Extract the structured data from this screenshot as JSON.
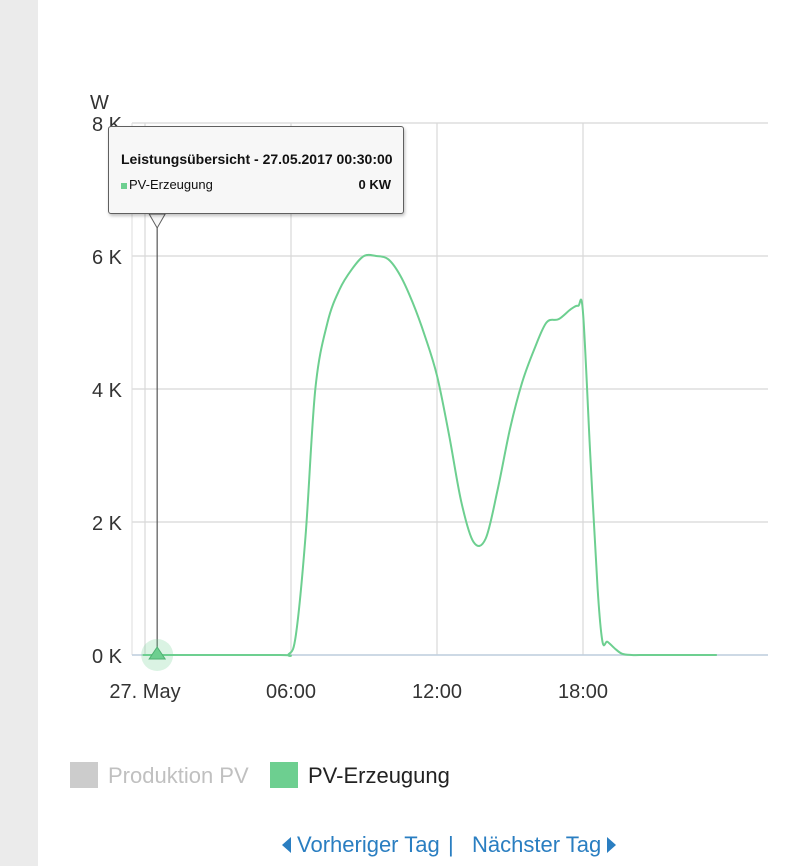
{
  "chart_data": {
    "type": "area",
    "title": "",
    "ylabel": "W",
    "xlabel": "",
    "ylim": [
      0,
      8000
    ],
    "yticks": [
      0,
      2000,
      4000,
      6000,
      8000
    ],
    "ytick_labels": [
      "0 K",
      "2 K",
      "4 K",
      "6 K",
      "8 K"
    ],
    "xlim": [
      0,
      24
    ],
    "xticks": [
      0,
      6,
      12,
      18
    ],
    "xtick_labels": [
      "27. May",
      "06:00",
      "12:00",
      "18:00"
    ],
    "grid": true,
    "legend_position": "bottom-left",
    "series": [
      {
        "name": "Produktion PV",
        "visible": false,
        "color": "#cccccc",
        "x": [
          0,
          23.5
        ],
        "values": [
          0,
          0
        ]
      },
      {
        "name": "PV-Erzeugung",
        "visible": true,
        "color": "#6dcf90",
        "x": [
          0,
          0.5,
          5.5,
          5.9,
          6.2,
          6.6,
          7.0,
          7.5,
          8.0,
          8.5,
          9.0,
          9.5,
          10.0,
          10.5,
          11.0,
          11.5,
          12.0,
          12.5,
          13.0,
          13.5,
          14.0,
          14.5,
          15.0,
          15.5,
          16.0,
          16.5,
          17.0,
          17.5,
          17.8,
          18.0,
          18.3,
          18.6,
          18.8,
          19.0,
          19.3,
          19.6,
          20.0,
          20.5,
          21.0,
          22.0,
          23.5
        ],
        "values": [
          0,
          0,
          0,
          10,
          300,
          1800,
          4000,
          5000,
          5500,
          5800,
          6000,
          6000,
          5950,
          5700,
          5300,
          4800,
          4200,
          3300,
          2300,
          1700,
          1750,
          2500,
          3400,
          4100,
          4600,
          5000,
          5050,
          5200,
          5250,
          5150,
          3000,
          1000,
          200,
          200,
          100,
          20,
          0,
          0,
          0,
          0,
          0
        ]
      }
    ]
  },
  "tooltip": {
    "title": "Leistungsübersicht - 27.05.2017 00:30:00",
    "series_name": "PV-Erzeugung",
    "value": "0 KW",
    "marker_x": 0.5,
    "marker_y": 0
  },
  "legend": {
    "items": [
      {
        "label": "Produktion PV",
        "color": "#cccccc",
        "active": false
      },
      {
        "label": "PV-Erzeugung",
        "color": "#6dcf90",
        "active": true
      }
    ]
  },
  "navigation": {
    "prev_label": "Vorheriger Tag",
    "separator": "|",
    "next_label": "Nächster Tag"
  }
}
